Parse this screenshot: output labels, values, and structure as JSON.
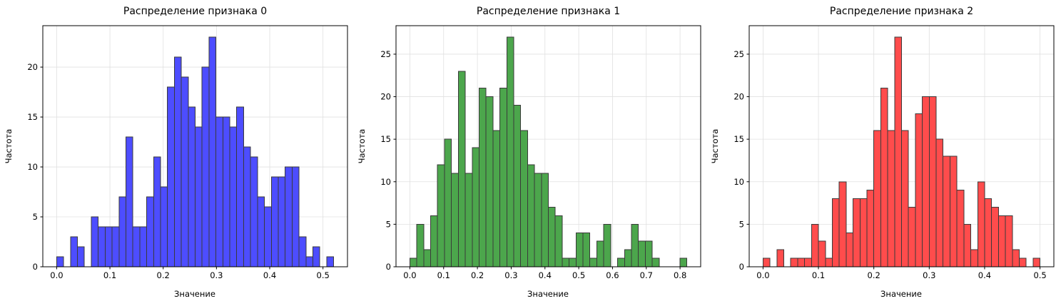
{
  "figure": {
    "background": "#ffffff",
    "text_color": "#000000",
    "grid_color": "#e0e0e0"
  },
  "chart_data": [
    {
      "type": "bar",
      "title": "Распределение признака 0",
      "xlabel": "Значение",
      "ylabel": "Частота",
      "bar_color": "#4d4dff",
      "edge_color": "#3a3a3a",
      "grid_color": "#e0e0e0",
      "grid": true,
      "bin_start": 0.0,
      "bin_width": 0.013,
      "values": [
        1,
        0,
        3,
        2,
        0,
        5,
        4,
        4,
        4,
        7,
        13,
        4,
        4,
        7,
        11,
        8,
        18,
        21,
        19,
        16,
        14,
        20,
        23,
        15,
        15,
        14,
        16,
        12,
        11,
        7,
        6,
        9,
        9,
        10,
        10,
        3,
        1,
        2,
        0,
        1
      ],
      "xlim": [
        -0.026,
        0.546
      ],
      "ylim": [
        0,
        24.15
      ],
      "xticks": [
        0.0,
        0.1,
        0.2,
        0.3,
        0.4,
        0.5
      ],
      "yticks": [
        0,
        5,
        10,
        15,
        20
      ]
    },
    {
      "type": "bar",
      "title": "Распределение признака 1",
      "xlabel": "Значение",
      "ylabel": "Частота",
      "bar_color": "#4ca64c",
      "edge_color": "#3a3a3a",
      "grid_color": "#e0e0e0",
      "grid": true,
      "bin_start": 0.0,
      "bin_width": 0.0205,
      "values": [
        1,
        5,
        2,
        6,
        12,
        15,
        11,
        23,
        11,
        14,
        21,
        20,
        16,
        21,
        27,
        19,
        16,
        12,
        11,
        11,
        7,
        6,
        1,
        1,
        4,
        4,
        1,
        3,
        5,
        0,
        1,
        2,
        5,
        3,
        3,
        1,
        0,
        0,
        0,
        1
      ],
      "xlim": [
        -0.041,
        0.861
      ],
      "ylim": [
        0,
        28.35
      ],
      "xticks": [
        0.0,
        0.1,
        0.2,
        0.3,
        0.4,
        0.5,
        0.6,
        0.7,
        0.8
      ],
      "yticks": [
        0,
        5,
        10,
        15,
        20,
        25
      ]
    },
    {
      "type": "bar",
      "title": "Распределение признака 2",
      "xlabel": "Значение",
      "ylabel": "Частота",
      "bar_color": "#ff4c4c",
      "edge_color": "#3a3a3a",
      "grid_color": "#e0e0e0",
      "grid": true,
      "bin_start": 0.0,
      "bin_width": 0.0125,
      "values": [
        1,
        0,
        2,
        0,
        1,
        1,
        1,
        5,
        3,
        1,
        8,
        10,
        4,
        8,
        8,
        9,
        16,
        21,
        16,
        27,
        16,
        7,
        18,
        20,
        20,
        15,
        13,
        13,
        9,
        5,
        2,
        10,
        8,
        7,
        6,
        6,
        2,
        1,
        0,
        1
      ],
      "xlim": [
        -0.025,
        0.525
      ],
      "ylim": [
        0,
        28.35
      ],
      "xticks": [
        0.0,
        0.1,
        0.2,
        0.3,
        0.4,
        0.5
      ],
      "yticks": [
        0,
        5,
        10,
        15,
        20,
        25
      ]
    }
  ]
}
